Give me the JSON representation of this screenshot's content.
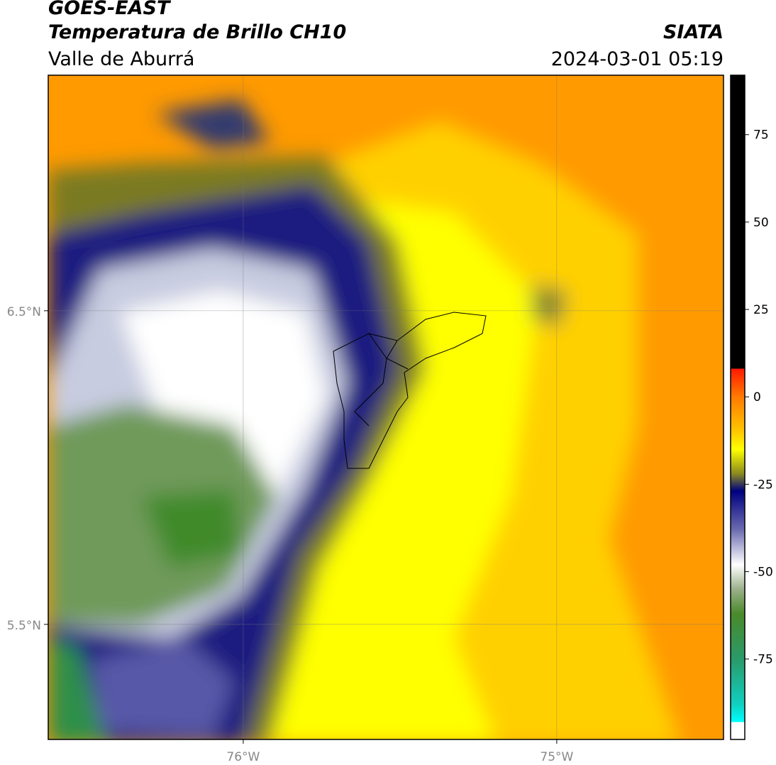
{
  "header": {
    "title": "GOES-EAST",
    "subtitle": "Temperatura de Brillo CH10",
    "region": "Valle de Aburrá",
    "source": "SIATA",
    "datetime": "2024-03-01 05:19"
  },
  "map": {
    "xlim": [
      -76.622,
      -74.468
    ],
    "ylim": [
      5.133,
      7.251
    ],
    "xticks": [
      {
        "value": -76,
        "label": "76°W"
      },
      {
        "value": -75,
        "label": "75°W"
      }
    ],
    "yticks": [
      {
        "value": 5.5,
        "label": "5.5°N"
      },
      {
        "value": 6.5,
        "label": "6.5°N"
      }
    ],
    "grid": true
  },
  "colorbar": {
    "lim": [
      -98,
      92
    ],
    "ticks": [
      -75,
      -50,
      -25,
      0,
      25,
      50,
      75
    ]
  }
}
